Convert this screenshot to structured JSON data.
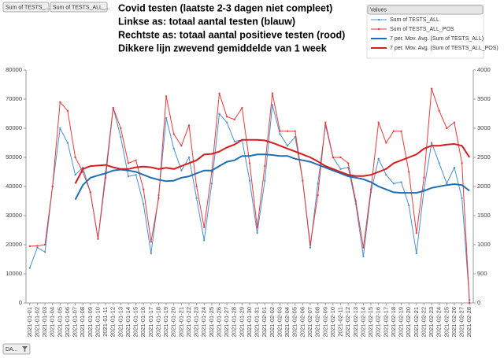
{
  "pivot": {
    "fields": [
      "Sum of TESTS_...",
      "Sum of TESTS_ALL_..."
    ],
    "values_button": "Values",
    "axis_field_button": "DA..."
  },
  "chart_data": {
    "type": "line",
    "annotations": [
      "Covid testen (laatste 2-3 dagen niet compleet)",
      "Linkse as: totaal aantal testen (blauw)",
      "Rechtste as: totaal aantal positieve testen (rood)",
      "Dikkere lijn zwevend gemiddelde van 1 week"
    ],
    "categories": [
      "2021-01-01",
      "2021-01-02",
      "2021-01-03",
      "2021-01-04",
      "2021-01-05",
      "2021-01-06",
      "2021-01-07",
      "2021-01-08",
      "2021-01-09",
      "2021-01-10",
      "2021-01-11",
      "2021-01-12",
      "2021-01-13",
      "2021-01-14",
      "2021-01-15",
      "2021-01-16",
      "2021-01-17",
      "2021-01-18",
      "2021-01-19",
      "2021-01-20",
      "2021-01-21",
      "2021-01-22",
      "2021-01-23",
      "2021-01-24",
      "2021-01-25",
      "2021-01-26",
      "2021-01-27",
      "2021-01-28",
      "2021-01-29",
      "2021-01-30",
      "2021-01-31",
      "2021-02-01",
      "2021-02-02",
      "2021-02-03",
      "2021-02-04",
      "2021-02-05",
      "2021-02-06",
      "2021-02-07",
      "2021-02-08",
      "2021-02-09",
      "2021-02-10",
      "2021-02-11",
      "2021-02-12",
      "2021-02-13",
      "2021-02-14",
      "2021-02-15",
      "2021-02-16",
      "2021-02-17",
      "2021-02-18",
      "2021-02-19",
      "2021-02-20",
      "2021-02-21",
      "2021-02-22",
      "2021-02-23",
      "2021-02-24",
      "2021-02-25",
      "2021-02-26",
      "2021-02-27",
      "2021-02-28"
    ],
    "series": [
      {
        "name": "Sum of TESTS_ALL",
        "color": "#4a8fcf",
        "width": 1,
        "axis": "y",
        "markers": true,
        "values": [
          12000,
          19000,
          17500,
          40000,
          60000,
          55000,
          44000,
          46500,
          38000,
          22000,
          45000,
          67000,
          57000,
          43500,
          44000,
          34000,
          17000,
          37000,
          63500,
          53000,
          45500,
          50000,
          36000,
          21500,
          41000,
          65000,
          62000,
          55500,
          56000,
          42000,
          24000,
          42000,
          68000,
          58000,
          54000,
          57000,
          42000,
          19000,
          41000,
          61000,
          50000,
          46000,
          46500,
          34000,
          16000,
          38000,
          49500,
          44000,
          41000,
          41500,
          33500,
          17000,
          39000,
          55000,
          48000,
          41000,
          46500,
          36000,
          1000
        ]
      },
      {
        "name": "Sum of TESTS_ALL_POS",
        "color": "#e83a3a",
        "width": 1,
        "axis": "y2",
        "markers": true,
        "values": [
          975,
          980,
          1000,
          2000,
          3450,
          3300,
          2500,
          2250,
          1900,
          1100,
          2150,
          3350,
          3000,
          2400,
          2450,
          1950,
          1050,
          1800,
          3550,
          2900,
          2700,
          3050,
          2000,
          1300,
          2250,
          3600,
          3200,
          3150,
          3350,
          2400,
          1300,
          2350,
          3600,
          2950,
          2950,
          2950,
          2100,
          1000,
          1850,
          3100,
          2500,
          2500,
          2400,
          1750,
          950,
          1950,
          3100,
          2750,
          2950,
          2950,
          2250,
          1200,
          2150,
          3680,
          3300,
          3000,
          3100,
          2400,
          0
        ]
      },
      {
        "name": "7 per. Mov. Avg. (Sum of TESTS_ALL)",
        "color": "#1f6fb2",
        "width": 2,
        "axis": "y",
        "markers": false,
        "values": [
          null,
          null,
          null,
          null,
          null,
          null,
          35500,
          40500,
          43000,
          43800,
          44500,
          45500,
          45800,
          45500,
          45000,
          44000,
          43000,
          42300,
          41800,
          42000,
          43000,
          43500,
          44500,
          45500,
          45500,
          47000,
          48500,
          49000,
          50500,
          50500,
          51000,
          51000,
          50800,
          50500,
          50500,
          49500,
          49000,
          48500,
          47500,
          46500,
          45500,
          44500,
          43500,
          43000,
          42500,
          41500,
          40000,
          39000,
          38000,
          37800,
          37800,
          37800,
          38500,
          39500,
          40000,
          40500,
          40800,
          40500,
          38500
        ]
      },
      {
        "name": "7 per. Mov. Avg. (Sum of TESTS_ALL_POS)",
        "color": "#d61c1c",
        "width": 2,
        "axis": "y2",
        "markers": false,
        "values": [
          null,
          null,
          null,
          null,
          null,
          null,
          2050,
          2300,
          2350,
          2360,
          2370,
          2330,
          2300,
          2300,
          2330,
          2340,
          2330,
          2300,
          2320,
          2300,
          2350,
          2400,
          2450,
          2550,
          2560,
          2600,
          2670,
          2720,
          2800,
          2800,
          2800,
          2790,
          2750,
          2700,
          2650,
          2600,
          2550,
          2500,
          2430,
          2350,
          2300,
          2250,
          2200,
          2180,
          2180,
          2200,
          2250,
          2300,
          2400,
          2450,
          2500,
          2550,
          2650,
          2700,
          2700,
          2720,
          2730,
          2700,
          2500
        ]
      }
    ],
    "ylim": [
      0,
      80000
    ],
    "yticks": [
      0,
      10000,
      20000,
      30000,
      40000,
      50000,
      60000,
      70000,
      80000
    ],
    "y2lim": [
      0,
      4000
    ],
    "y2ticks": [
      0,
      500,
      1000,
      1500,
      2000,
      2500,
      3000,
      3500,
      4000
    ],
    "grid": false,
    "legend": "top-right"
  }
}
